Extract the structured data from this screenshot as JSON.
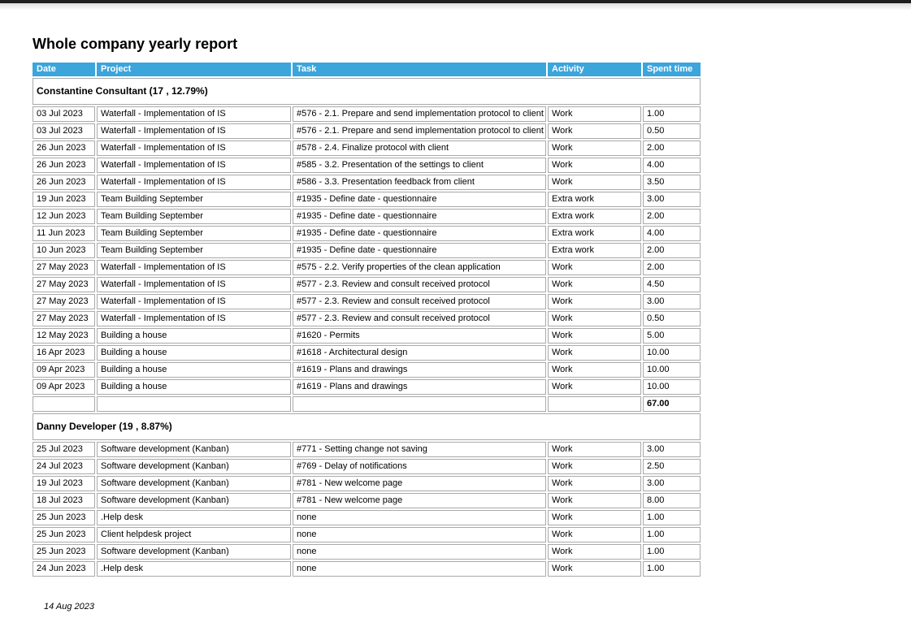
{
  "page": {
    "title": "Whole company yearly report",
    "footer_date": "14 Aug 2023"
  },
  "colors": {
    "header_bg": "#3ca5dc",
    "header_text": "#ffffff",
    "cell_border": "#a9a9a9",
    "top_bar": "#1d1d1d"
  },
  "table": {
    "columns": [
      "Date",
      "Project",
      "Task",
      "Activity",
      "Spent time"
    ],
    "groups": [
      {
        "header": "Constantine Consultant (17 , 12.79%)",
        "rows": [
          [
            "03 Jul 2023",
            "Waterfall - Implementation of IS",
            "#576 - 2.1. Prepare and send implementation protocol to client",
            "Work",
            "1.00"
          ],
          [
            "03 Jul 2023",
            "Waterfall - Implementation of IS",
            "#576 - 2.1. Prepare and send implementation protocol to client",
            "Work",
            "0.50"
          ],
          [
            "26 Jun 2023",
            "Waterfall - Implementation of IS",
            "#578 - 2.4. Finalize protocol with client",
            "Work",
            "2.00"
          ],
          [
            "26 Jun 2023",
            "Waterfall - Implementation of IS",
            "#585 - 3.2. Presentation of the settings to client",
            "Work",
            "4.00"
          ],
          [
            "26 Jun 2023",
            "Waterfall - Implementation of IS",
            "#586 - 3.3. Presentation feedback from client",
            "Work",
            "3.50"
          ],
          [
            "19 Jun 2023",
            "Team Building September",
            "#1935 - Define date - questionnaire",
            "Extra work",
            "3.00"
          ],
          [
            "12 Jun 2023",
            "Team Building September",
            "#1935 - Define date - questionnaire",
            "Extra work",
            "2.00"
          ],
          [
            "11 Jun 2023",
            "Team Building September",
            "#1935 - Define date - questionnaire",
            "Extra work",
            "4.00"
          ],
          [
            "10 Jun 2023",
            "Team Building September",
            "#1935 - Define date - questionnaire",
            "Extra work",
            "2.00"
          ],
          [
            "27 May 2023",
            "Waterfall - Implementation of IS",
            "#575 - 2.2. Verify properties of the clean application",
            "Work",
            "2.00"
          ],
          [
            "27 May 2023",
            "Waterfall - Implementation of IS",
            "#577 - 2.3. Review and consult received protocol",
            "Work",
            "4.50"
          ],
          [
            "27 May 2023",
            "Waterfall - Implementation of IS",
            "#577 - 2.3. Review and consult received protocol",
            "Work",
            "3.00"
          ],
          [
            "27 May 2023",
            "Waterfall - Implementation of IS",
            "#577 - 2.3. Review and consult received protocol",
            "Work",
            "0.50"
          ],
          [
            "12 May 2023",
            "Building a house",
            "#1620 - Permits",
            "Work",
            "5.00"
          ],
          [
            "16 Apr 2023",
            "Building a house",
            "#1618 - Architectural design",
            "Work",
            "10.00"
          ],
          [
            "09 Apr 2023",
            "Building a house",
            "#1619 - Plans and drawings",
            "Work",
            "10.00"
          ],
          [
            "09 Apr 2023",
            "Building a house",
            "#1619 - Plans and drawings",
            "Work",
            "10.00"
          ]
        ],
        "total": "67.00"
      },
      {
        "header": "Danny Developer (19 , 8.87%)",
        "rows": [
          [
            "25 Jul 2023",
            "Software development (Kanban)",
            "#771 - Setting change not saving",
            "Work",
            "3.00"
          ],
          [
            "24 Jul 2023",
            "Software development (Kanban)",
            "#769 - Delay of notifications",
            "Work",
            "2.50"
          ],
          [
            "19 Jul 2023",
            "Software development (Kanban)",
            "#781 - New welcome page",
            "Work",
            "3.00"
          ],
          [
            "18 Jul 2023",
            "Software development (Kanban)",
            "#781 - New welcome page",
            "Work",
            "8.00"
          ],
          [
            "25 Jun 2023",
            ".Help desk",
            "none",
            "Work",
            "1.00"
          ],
          [
            "25 Jun 2023",
            "Client helpdesk project",
            "none",
            "Work",
            "1.00"
          ],
          [
            "25 Jun 2023",
            "Software development (Kanban)",
            "none",
            "Work",
            "1.00"
          ],
          [
            "24 Jun 2023",
            ".Help desk",
            "none",
            "Work",
            "1.00"
          ]
        ],
        "total": null
      }
    ]
  }
}
